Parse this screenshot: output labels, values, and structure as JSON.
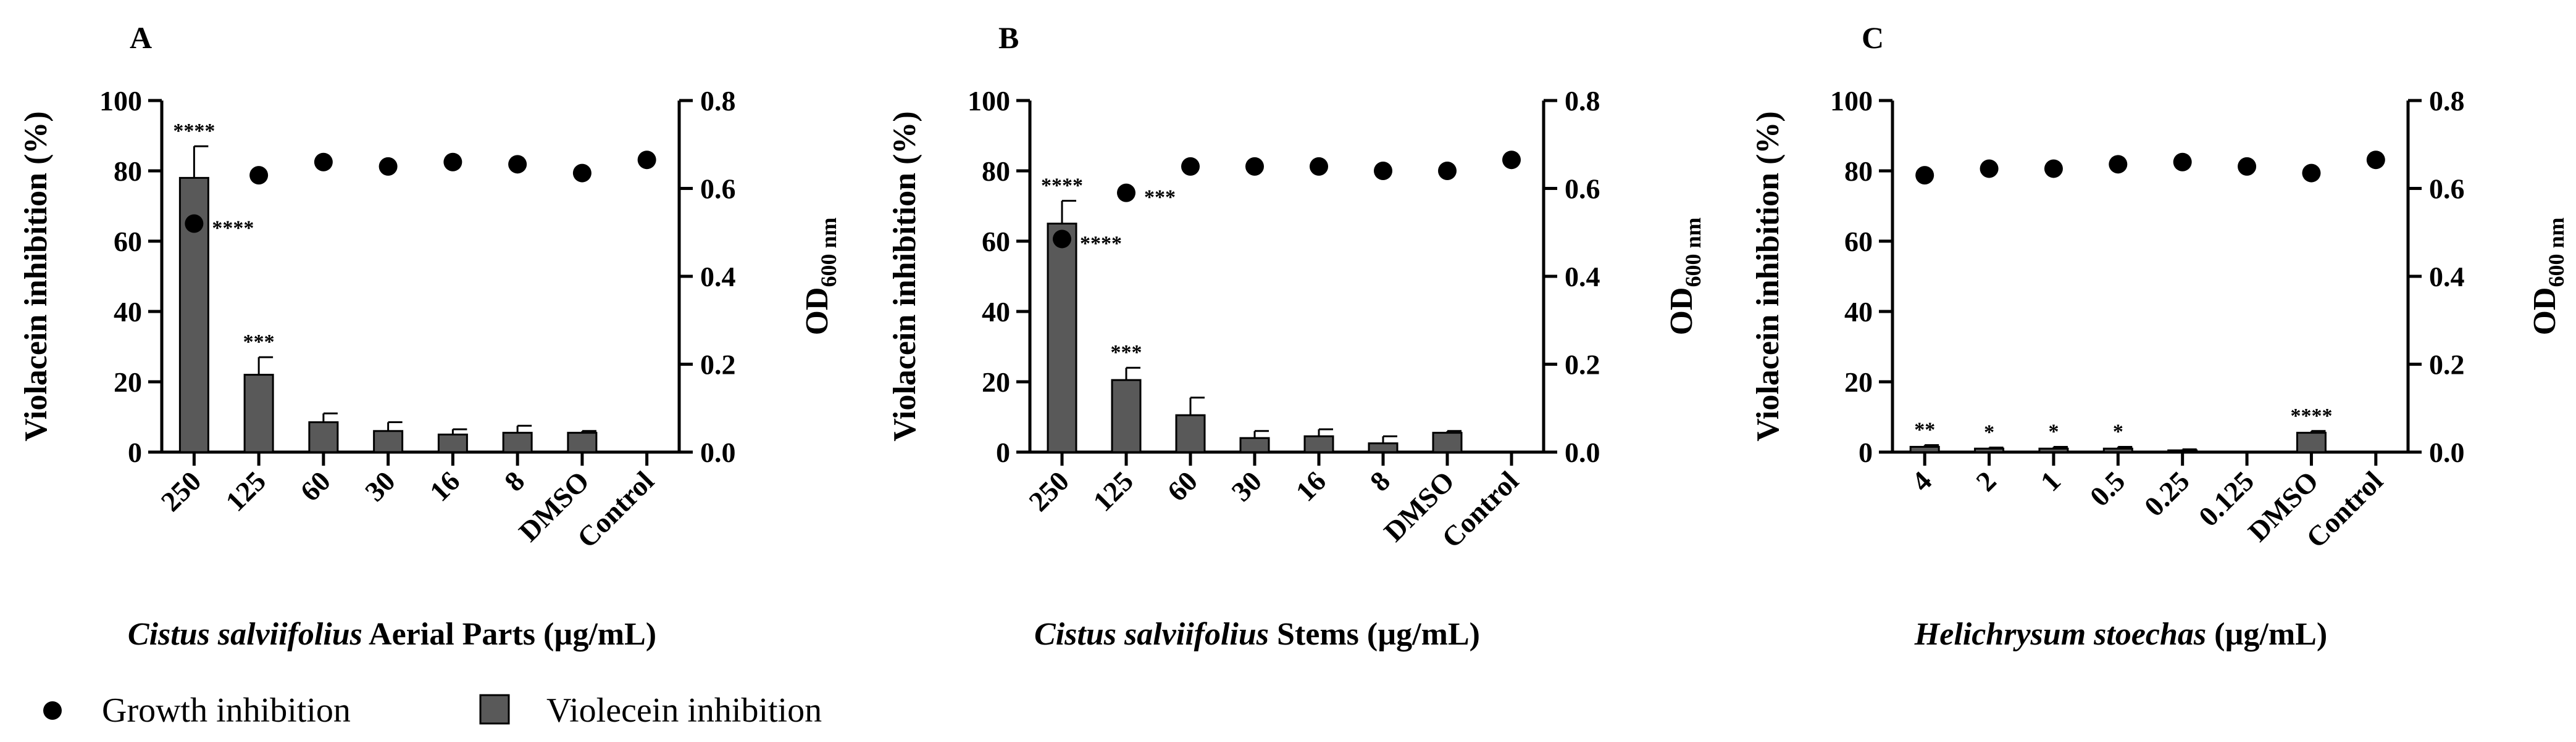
{
  "colors": {
    "bar": "#595959",
    "point": "#000000",
    "axis": "#000000"
  },
  "legend": {
    "items": [
      {
        "label": "Growth inhibition",
        "marker": "filled-circle"
      },
      {
        "label": "Violecein inhibition",
        "marker": "grey-square"
      }
    ]
  },
  "chart_data": [
    {
      "type": "bar",
      "panel": "A",
      "categories": [
        "250",
        "125",
        "60",
        "30",
        "16",
        "8",
        "DMSO",
        "Control"
      ],
      "xlabel_italic": "Cistus salviifolius",
      "xlabel_rest": " Aerial Parts (µg/mL)",
      "ylabel": "Violacein inhibition (%)",
      "y2label_main": "OD",
      "y2label_sub": "600 nm",
      "ylim": [
        0,
        100
      ],
      "y2lim": [
        0,
        0.8
      ],
      "yticks": [
        "0",
        "20",
        "40",
        "60",
        "80",
        "100"
      ],
      "y2ticks": [
        "0.0",
        "0.2",
        "0.4",
        "0.6",
        "0.8"
      ],
      "series": [
        {
          "name": "Violecein inhibition",
          "type": "bar",
          "axis": "left",
          "values": [
            78,
            22,
            8.5,
            6,
            5,
            5.5,
            5.5,
            null
          ],
          "errors": [
            9,
            5,
            2.5,
            2.5,
            1.5,
            2,
            0.5,
            null
          ],
          "annotations": [
            "****",
            "***",
            "",
            "",
            "",
            "",
            "",
            ""
          ]
        },
        {
          "name": "Growth inhibition",
          "type": "scatter",
          "axis": "right",
          "values": [
            0.52,
            0.63,
            0.66,
            0.65,
            0.66,
            0.655,
            0.635,
            0.665
          ],
          "annotations": [
            "****",
            "",
            "",
            "",
            "",
            "",
            "",
            ""
          ]
        }
      ]
    },
    {
      "type": "bar",
      "panel": "B",
      "categories": [
        "250",
        "125",
        "60",
        "30",
        "16",
        "8",
        "DMSO",
        "Control"
      ],
      "xlabel_italic": "Cistus salviifolius",
      "xlabel_rest": " Stems (µg/mL)",
      "ylabel": "Violacein inhibition (%)",
      "y2label_main": "OD",
      "y2label_sub": "600 nm",
      "ylim": [
        0,
        100
      ],
      "y2lim": [
        0,
        0.8
      ],
      "yticks": [
        "0",
        "20",
        "40",
        "60",
        "80",
        "100"
      ],
      "y2ticks": [
        "0.0",
        "0.2",
        "0.4",
        "0.6",
        "0.8"
      ],
      "series": [
        {
          "name": "Violecein inhibition",
          "type": "bar",
          "axis": "left",
          "values": [
            65,
            20.5,
            10.5,
            4,
            4.5,
            2.5,
            5.5,
            null
          ],
          "errors": [
            6.5,
            3.5,
            5,
            2,
            2,
            2,
            0.5,
            null
          ],
          "annotations": [
            "****",
            "***",
            "",
            "",
            "",
            "",
            "",
            ""
          ]
        },
        {
          "name": "Growth inhibition",
          "type": "scatter",
          "axis": "right",
          "values": [
            0.485,
            0.59,
            0.65,
            0.65,
            0.65,
            0.64,
            0.64,
            0.665
          ],
          "annotations": [
            "****",
            "***",
            "",
            "",
            "",
            "",
            "",
            ""
          ]
        }
      ]
    },
    {
      "type": "bar",
      "panel": "C",
      "categories": [
        "4",
        "2",
        "1",
        "0.5",
        "0.25",
        "0.125",
        "DMSO",
        "Control"
      ],
      "xlabel_italic": "Helichrysum stoechas",
      "xlabel_rest": " (µg/mL)",
      "ylabel": "Violacein inhibition (%)",
      "y2label_main": "OD",
      "y2label_sub": "600 nm",
      "ylim": [
        0,
        100
      ],
      "y2lim": [
        0,
        0.8
      ],
      "yticks": [
        "0",
        "20",
        "40",
        "60",
        "80",
        "100"
      ],
      "y2ticks": [
        "0.0",
        "0.2",
        "0.4",
        "0.6",
        "0.8"
      ],
      "series": [
        {
          "name": "Violecein inhibition",
          "type": "bar",
          "axis": "left",
          "values": [
            1.5,
            1,
            1,
            1,
            0.5,
            0,
            5.5,
            null
          ],
          "errors": [
            0.5,
            0.3,
            0.5,
            0.5,
            0.3,
            0,
            0.5,
            null
          ],
          "annotations": [
            "**",
            "*",
            "*",
            "*",
            "",
            "",
            "****",
            ""
          ]
        },
        {
          "name": "Growth inhibition",
          "type": "scatter",
          "axis": "right",
          "values": [
            0.63,
            0.645,
            0.645,
            0.655,
            0.66,
            0.65,
            0.635,
            0.665
          ],
          "annotations": [
            "",
            "",
            "",
            "",
            "",
            "",
            "",
            ""
          ]
        }
      ]
    }
  ]
}
